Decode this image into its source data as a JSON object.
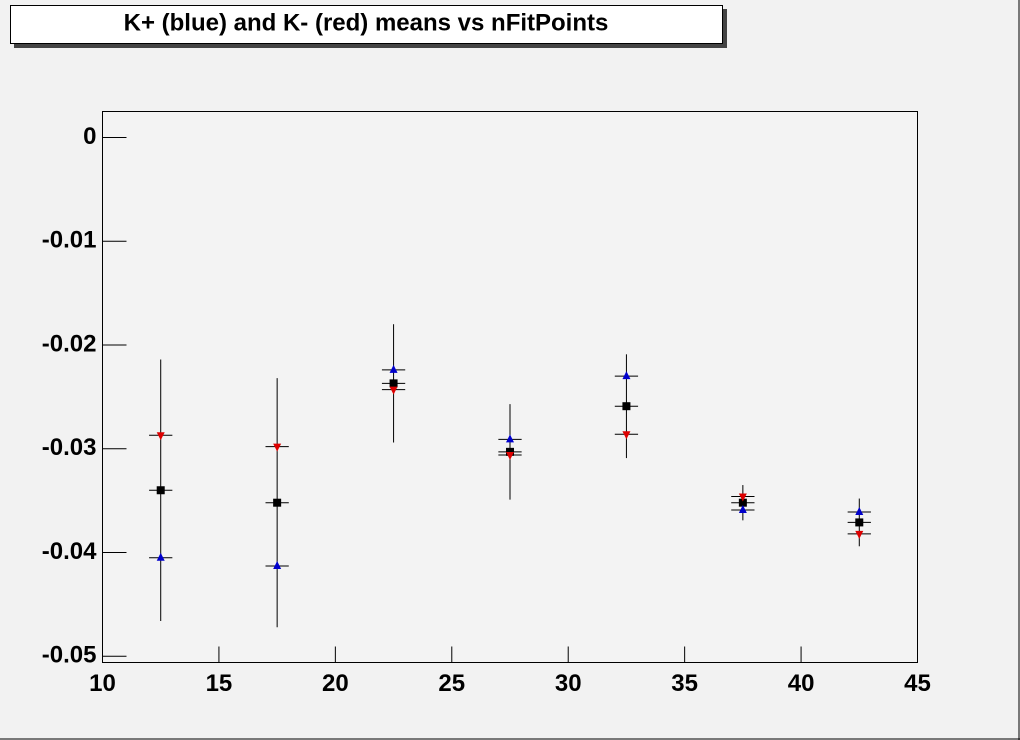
{
  "chart_data": {
    "type": "scatter",
    "title": "K+ (blue) and K- (red) means vs nFitPoints",
    "x": [
      12.5,
      17.5,
      22.5,
      27.5,
      32.5,
      37.5,
      42.5
    ],
    "xerr": 0.5,
    "series": [
      {
        "color": "#000000",
        "marker": "square",
        "values": [
          -0.034,
          -0.0352,
          -0.0237,
          -0.0303,
          -0.0259,
          -0.0352,
          -0.0371
        ],
        "errors": [
          0.0126,
          0.012,
          0.0057,
          0.0046,
          0.005,
          0.0017,
          0.0023
        ]
      },
      {
        "color": "#0000cc",
        "marker": "triangle-up",
        "values": [
          -0.0405,
          -0.0413,
          -0.0224,
          -0.0291,
          -0.023,
          -0.0359,
          -0.0361
        ]
      },
      {
        "color": "#dd0000",
        "marker": "triangle-down",
        "values": [
          -0.0287,
          -0.0298,
          -0.0243,
          -0.0306,
          -0.0286,
          -0.0346,
          -0.0382
        ]
      }
    ],
    "xlim": [
      10,
      45
    ],
    "xticks": [
      10,
      15,
      20,
      25,
      30,
      35,
      40,
      45
    ],
    "ylim": [
      -0.0506,
      0.0025
    ],
    "yticks": [
      0,
      -0.01,
      -0.02,
      -0.03,
      -0.04,
      -0.05
    ],
    "grid": false
  }
}
